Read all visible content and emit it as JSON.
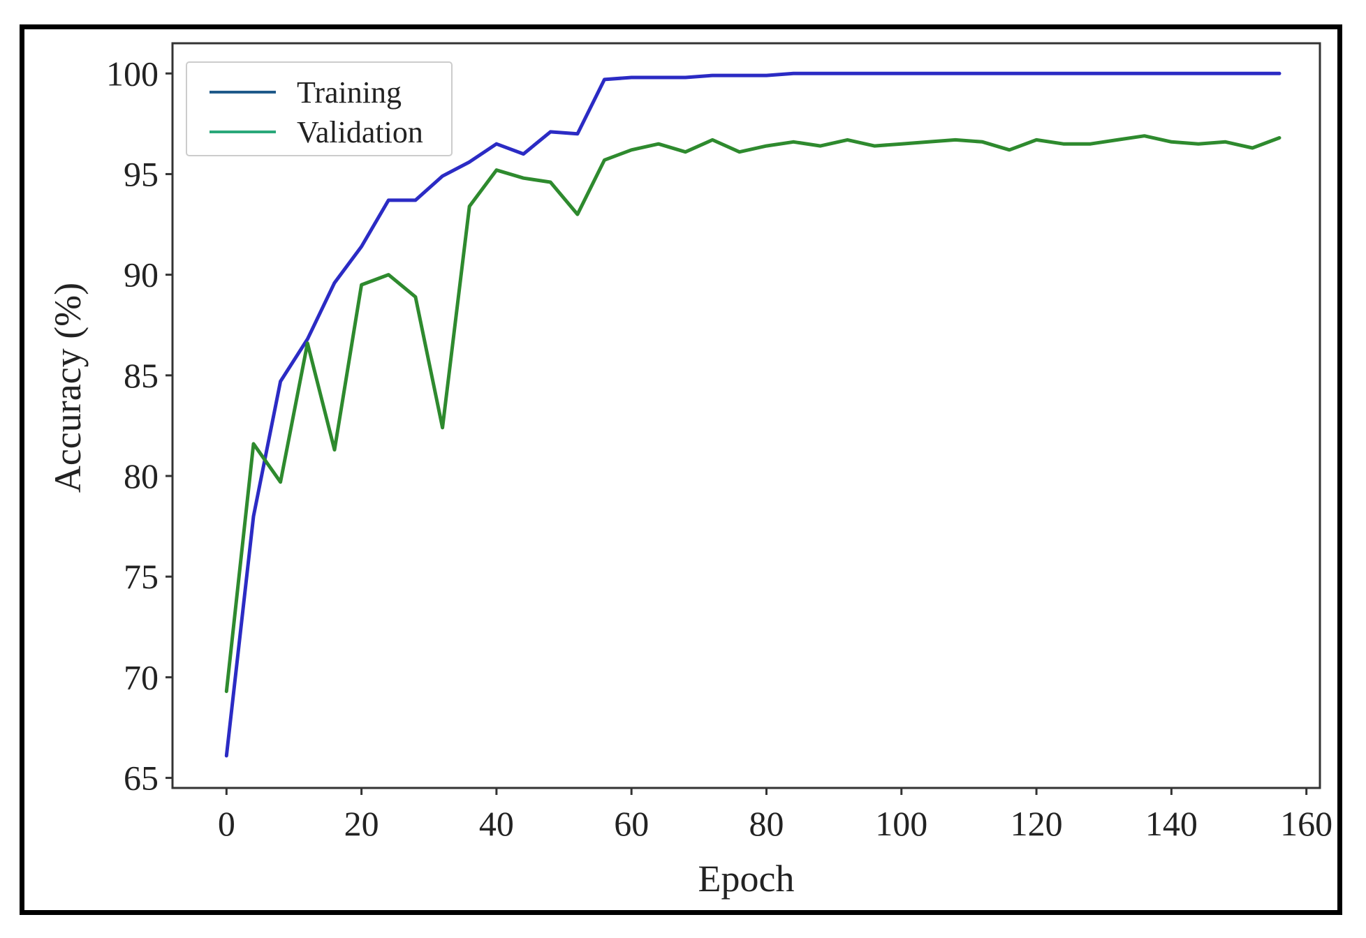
{
  "chart_data": {
    "type": "line",
    "xlabel": "Epoch",
    "ylabel": "Accuracy (%)",
    "xlim": [
      -8,
      162
    ],
    "ylim": [
      64.5,
      101.5
    ],
    "xticks": [
      0,
      20,
      40,
      60,
      80,
      100,
      120,
      140,
      160
    ],
    "yticks": [
      65,
      70,
      75,
      80,
      85,
      90,
      95,
      100
    ],
    "grid": false,
    "legend_position": "top-left",
    "series": [
      {
        "name": "Training",
        "color": "#2b2bc4",
        "legend_color": "#1f5a8a",
        "x": [
          0,
          4,
          8,
          12,
          16,
          20,
          24,
          28,
          32,
          36,
          40,
          44,
          48,
          52,
          56,
          60,
          64,
          68,
          72,
          76,
          80,
          84,
          88,
          92,
          96,
          100,
          104,
          108,
          112,
          116,
          120,
          124,
          128,
          132,
          136,
          140,
          144,
          148,
          152,
          156
        ],
        "y": [
          66.1,
          78.0,
          84.7,
          86.8,
          89.6,
          91.4,
          93.7,
          93.7,
          94.9,
          95.6,
          96.5,
          96.0,
          97.1,
          97.0,
          99.7,
          99.8,
          99.8,
          99.8,
          99.9,
          99.9,
          99.9,
          100.0,
          100.0,
          100.0,
          100.0,
          100.0,
          100.0,
          100.0,
          100.0,
          100.0,
          100.0,
          100.0,
          100.0,
          100.0,
          100.0,
          100.0,
          100.0,
          100.0,
          100.0,
          100.0
        ]
      },
      {
        "name": "Validation",
        "color": "#2e8a2e",
        "legend_color": "#2aa87a",
        "x": [
          0,
          4,
          8,
          12,
          16,
          20,
          24,
          28,
          32,
          36,
          40,
          44,
          48,
          52,
          56,
          60,
          64,
          68,
          72,
          76,
          80,
          84,
          88,
          92,
          96,
          100,
          104,
          108,
          112,
          116,
          120,
          124,
          128,
          132,
          136,
          140,
          144,
          148,
          152,
          156
        ],
        "y": [
          69.3,
          81.6,
          79.7,
          86.6,
          81.3,
          89.5,
          90.0,
          88.9,
          82.4,
          93.4,
          95.2,
          94.8,
          94.6,
          93.0,
          95.7,
          96.2,
          96.5,
          96.1,
          96.7,
          96.1,
          96.4,
          96.6,
          96.4,
          96.7,
          96.4,
          96.5,
          96.6,
          96.7,
          96.6,
          96.2,
          96.7,
          96.5,
          96.5,
          96.7,
          96.9,
          96.6,
          96.5,
          96.6,
          96.3,
          96.8
        ]
      }
    ]
  }
}
